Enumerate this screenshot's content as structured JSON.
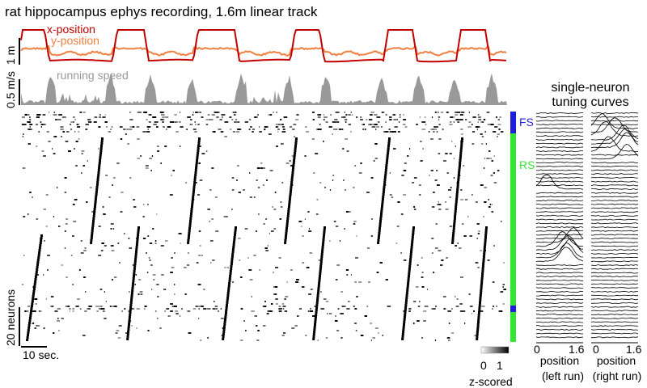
{
  "title": "rat hippocampus ephys recording, 1.6m linear track",
  "colors": {
    "x_position": "#c00000",
    "y_position": "#f08040",
    "running_speed": "#999999",
    "fs": "#1f1fdb",
    "rs": "#33e633",
    "raster": "#000000",
    "tuning": "#000000"
  },
  "chart_data": [
    {
      "type": "line",
      "name": "position traces",
      "series": [
        {
          "name": "x-position",
          "label": "x-position"
        },
        {
          "name": "y-position",
          "label": "y-position"
        }
      ],
      "scalebar": {
        "label": "1 m",
        "value_m": 1
      },
      "runs_to_right_end": 6,
      "track_length_m": 1.6
    },
    {
      "type": "area",
      "name": "running speed",
      "series": [
        {
          "name": "running speed",
          "label": "running speed"
        }
      ],
      "scalebar": {
        "label": "0.5 m/s",
        "value_m_per_s": 0.5
      }
    },
    {
      "type": "heatmap",
      "name": "population raster",
      "time_scalebar": {
        "label": "10 sec.",
        "value_s": 10
      },
      "neuron_scalebar": {
        "label": "20 neurons",
        "value": 20
      },
      "cell_type_bar": [
        {
          "label": "FS",
          "color": "#1f1fdb"
        },
        {
          "label": "RS",
          "color": "#33e633"
        }
      ],
      "colorbar": {
        "tick_labels": [
          "0",
          "1"
        ],
        "label": "z-scored",
        "range": [
          0,
          1
        ]
      }
    },
    {
      "type": "line",
      "name": "single-neuron tuning curves",
      "title_line1": "single-neuron",
      "title_line2": "tuning curves",
      "panels": [
        {
          "x_ticks": [
            "0",
            "1.6"
          ],
          "xlabel_line1": "position",
          "xlabel_line2": "(left run)",
          "xlim": [
            0,
            1.6
          ]
        },
        {
          "x_ticks": [
            "0",
            "1.6"
          ],
          "xlabel_line1": "position",
          "xlabel_line2": "(right run)",
          "xlim": [
            0,
            1.6
          ]
        }
      ]
    }
  ]
}
